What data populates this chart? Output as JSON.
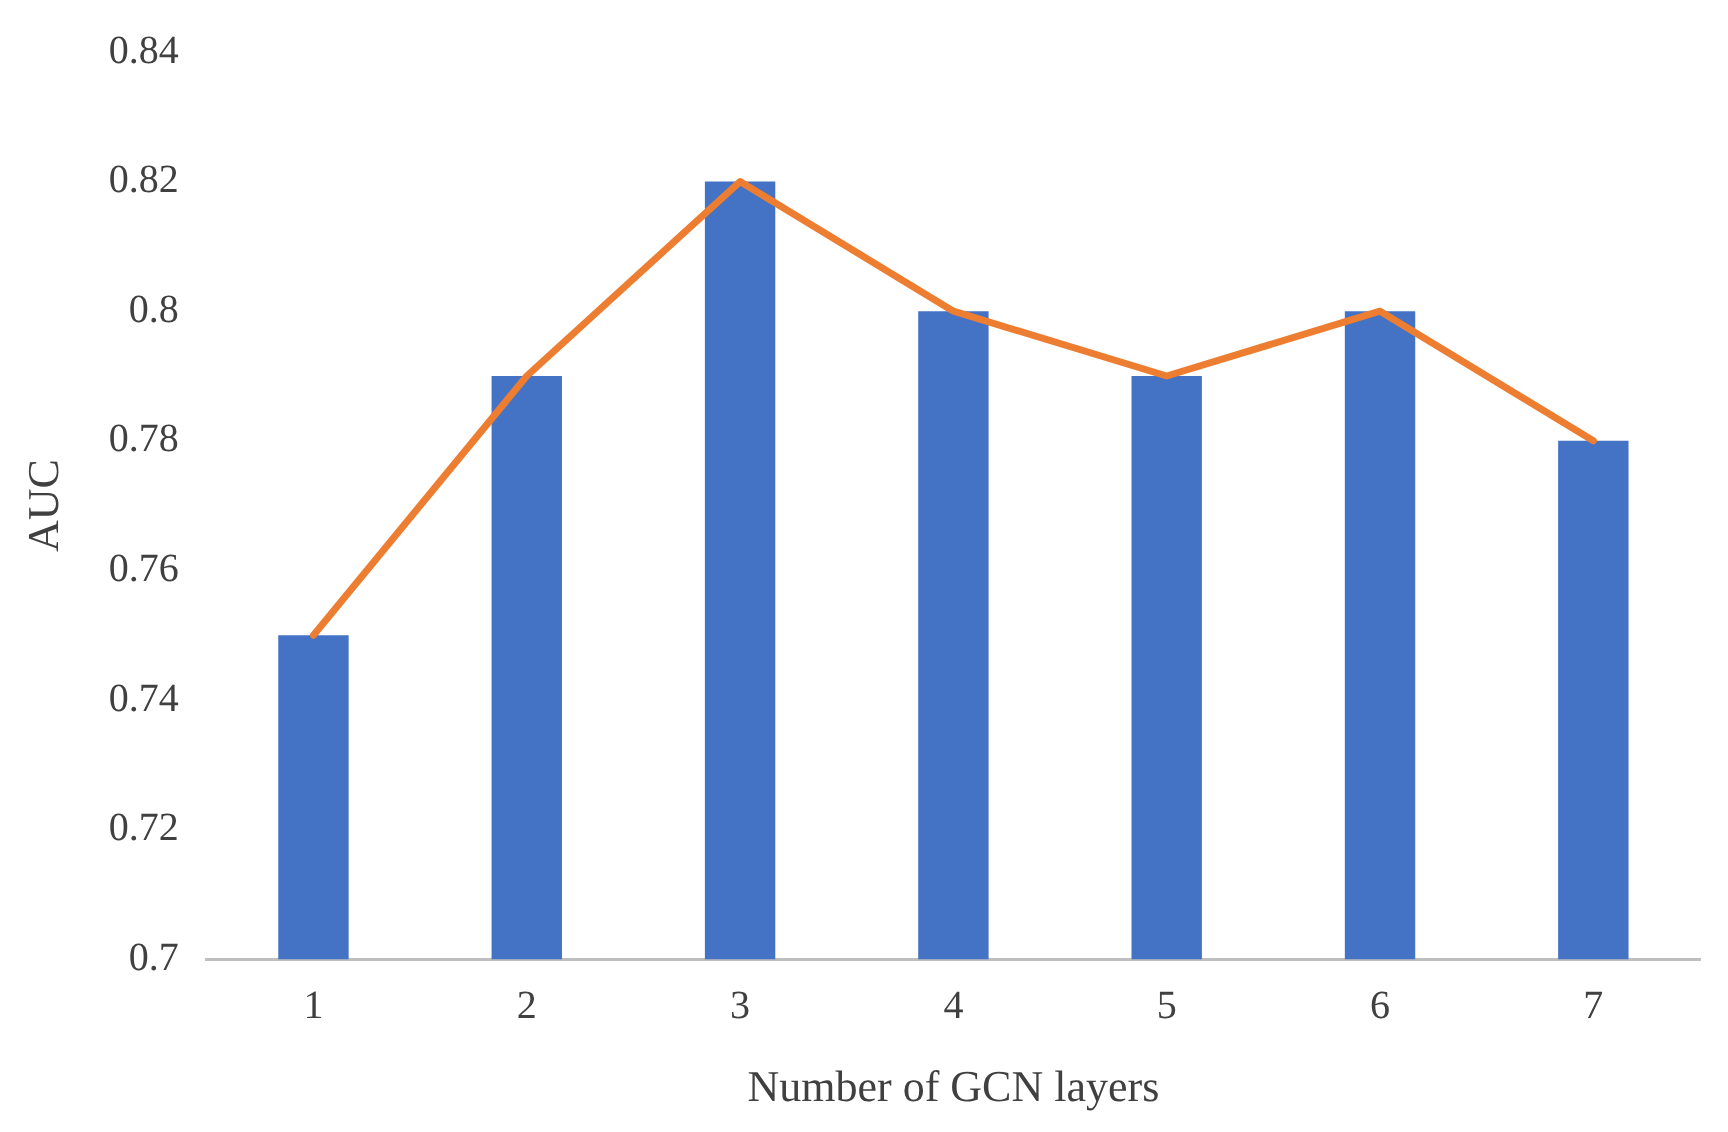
{
  "chart_data": {
    "type": "bar",
    "xlabel": "Number of GCN layers",
    "ylabel": "AUC",
    "categories": [
      "1",
      "2",
      "3",
      "4",
      "5",
      "6",
      "7"
    ],
    "series": [
      {
        "color": "#4472c4",
        "values": [
          0.75,
          0.79,
          0.82,
          0.8,
          0.79,
          0.8,
          0.78
        ]
      },
      {
        "type": "line",
        "color": "#ed7d31",
        "values": [
          0.75,
          0.79,
          0.82,
          0.8,
          0.79,
          0.8,
          0.78
        ]
      }
    ],
    "ylim": [
      0.7,
      0.84
    ],
    "yticks": [
      0.7,
      0.72,
      0.74,
      0.76,
      0.78,
      0.8,
      0.82,
      0.84
    ],
    "grid": false,
    "legend": false,
    "marker": "none",
    "line_style": "solid"
  }
}
